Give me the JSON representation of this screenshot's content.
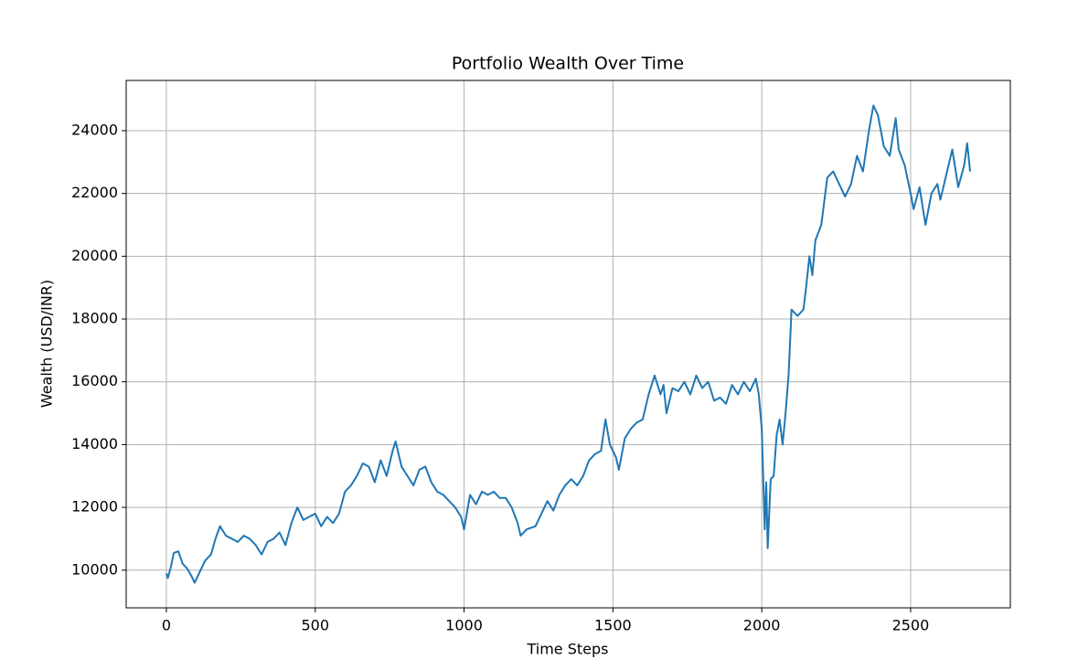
{
  "chart_data": {
    "type": "line",
    "title": "Portfolio Wealth Over Time",
    "xlabel": "Time Steps",
    "ylabel": "Wealth (USD/INR)",
    "xlim": [
      -135,
      2835
    ],
    "ylim": [
      8800,
      25600
    ],
    "xticks": [
      0,
      500,
      1000,
      1500,
      2000,
      2500
    ],
    "yticks": [
      10000,
      12000,
      14000,
      16000,
      18000,
      20000,
      22000,
      24000
    ],
    "grid": true,
    "x": [
      0,
      5,
      15,
      25,
      40,
      55,
      70,
      85,
      95,
      110,
      130,
      150,
      165,
      180,
      200,
      220,
      240,
      260,
      280,
      300,
      320,
      340,
      360,
      380,
      400,
      420,
      440,
      460,
      480,
      500,
      520,
      540,
      560,
      580,
      600,
      620,
      640,
      660,
      680,
      700,
      720,
      740,
      760,
      770,
      790,
      810,
      830,
      850,
      870,
      890,
      910,
      930,
      950,
      970,
      990,
      1000,
      1020,
      1040,
      1060,
      1080,
      1100,
      1120,
      1140,
      1160,
      1180,
      1190,
      1210,
      1240,
      1260,
      1280,
      1300,
      1320,
      1340,
      1360,
      1380,
      1400,
      1420,
      1440,
      1460,
      1475,
      1490,
      1510,
      1520,
      1540,
      1560,
      1580,
      1600,
      1620,
      1640,
      1660,
      1670,
      1680,
      1700,
      1720,
      1740,
      1760,
      1780,
      1800,
      1820,
      1840,
      1860,
      1880,
      1900,
      1920,
      1940,
      1960,
      1980,
      1990,
      2000,
      2010,
      2015,
      2020,
      2030,
      2040,
      2050,
      2060,
      2070,
      2080,
      2090,
      2100,
      2120,
      2140,
      2150,
      2160,
      2170,
      2180,
      2200,
      2220,
      2240,
      2260,
      2280,
      2300,
      2320,
      2340,
      2360,
      2375,
      2390,
      2410,
      2430,
      2450,
      2460,
      2480,
      2500,
      2510,
      2530,
      2550,
      2570,
      2590,
      2600,
      2620,
      2640,
      2660,
      2680,
      2690,
      2700
    ],
    "series": [
      {
        "name": "Wealth",
        "color": "#1f77b4",
        "values": [
          9900,
          9750,
          10100,
          10550,
          10600,
          10200,
          10050,
          9800,
          9600,
          9900,
          10300,
          10500,
          11000,
          11400,
          11100,
          11000,
          10900,
          11100,
          11000,
          10800,
          10500,
          10900,
          11000,
          11200,
          10800,
          11500,
          12000,
          11600,
          11700,
          11800,
          11400,
          11700,
          11500,
          11800,
          12500,
          12700,
          13000,
          13400,
          13300,
          12800,
          13500,
          13000,
          13800,
          14100,
          13300,
          13000,
          12700,
          13200,
          13300,
          12800,
          12500,
          12400,
          12200,
          12000,
          11700,
          11300,
          12400,
          12100,
          12500,
          12400,
          12500,
          12300,
          12300,
          12000,
          11500,
          11100,
          11300,
          11400,
          11800,
          12200,
          11900,
          12400,
          12700,
          12900,
          12700,
          13000,
          13500,
          13700,
          13800,
          14800,
          14000,
          13600,
          13200,
          14200,
          14500,
          14700,
          14800,
          15600,
          16200,
          15600,
          15900,
          15000,
          15800,
          15700,
          16000,
          15600,
          16200,
          15800,
          16000,
          15400,
          15500,
          15300,
          15900,
          15600,
          16000,
          15700,
          16100,
          15600,
          14500,
          11300,
          12800,
          10700,
          12900,
          13000,
          14300,
          14800,
          14000,
          15000,
          16200,
          18300,
          18100,
          18300,
          19100,
          20000,
          19400,
          20500,
          21000,
          22500,
          22700,
          22300,
          21900,
          22300,
          23200,
          22700,
          24000,
          24800,
          24500,
          23500,
          23200,
          24400,
          23400,
          22900,
          22000,
          21500,
          22200,
          21000,
          22000,
          22300,
          21800,
          22600,
          23400,
          22200,
          22900,
          23600,
          22700
        ]
      }
    ]
  }
}
